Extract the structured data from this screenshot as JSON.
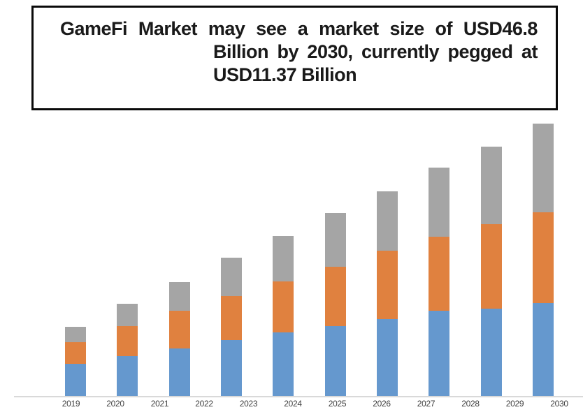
{
  "title_box": {
    "line1": "GameFi Market may see a market size of USD46.8",
    "line2": "Billion by 2030, currently pegged at",
    "line3": "USD11.37 Billion"
  },
  "chart_data": {
    "type": "bar",
    "stacked": true,
    "title": "GameFi Market may see a market size of USD46.8 Billion by 2030, currently pegged at USD11.37 Billion",
    "unit": "USD Billion",
    "categories": [
      "2019",
      "2020",
      "2021",
      "2022",
      "2023",
      "2024",
      "2025",
      "2026",
      "2027",
      "2028",
      "2029",
      "2030"
    ],
    "bar_count": 10,
    "legend": "none",
    "gridlines": false,
    "y_axis_labels": "none",
    "note": "Chart shows 12 year labels but only 10 stacked bars; bars drift right of their labels. Segment values are estimates read from bar heights, anchored to a 46.8 total for the tallest (rightmost) bar.",
    "series": [
      {
        "name": "series-blue",
        "color": "#6598ce",
        "values": [
          5.5,
          6.8,
          8.2,
          9.6,
          10.9,
          12.0,
          13.2,
          14.6,
          15.0,
          16.0
        ]
      },
      {
        "name": "series-orange",
        "color": "#e0813f",
        "values": [
          3.8,
          5.2,
          6.5,
          7.6,
          8.8,
          10.2,
          11.8,
          12.8,
          14.5,
          15.6
        ]
      },
      {
        "name": "series-gray",
        "color": "#a5a5a5",
        "values": [
          2.6,
          3.8,
          4.9,
          6.6,
          7.8,
          9.2,
          10.2,
          11.8,
          13.3,
          15.2
        ]
      }
    ],
    "totals": [
      11.9,
      15.8,
      19.6,
      23.8,
      27.5,
      31.4,
      35.2,
      39.2,
      42.8,
      46.8
    ],
    "axis": {
      "x_line_color": "#d9d9d9",
      "label_color": "#3f3f3f"
    }
  }
}
